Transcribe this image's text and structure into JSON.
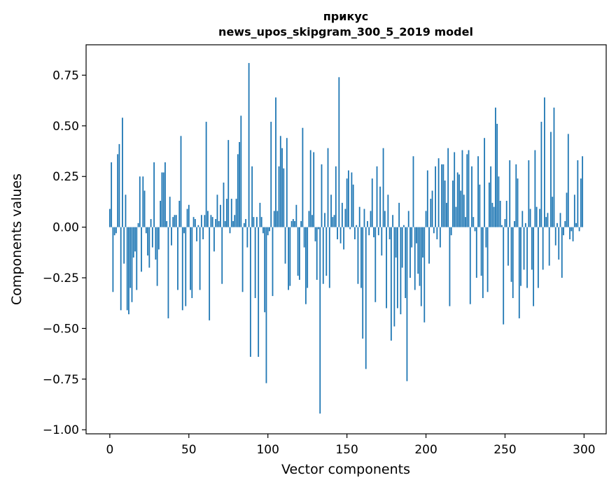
{
  "chart_data": {
    "type": "bar",
    "title": "прикус",
    "subtitle": "news_upos_skipgram_300_5_2019 model",
    "xlabel": "Vector components",
    "ylabel": "Components values",
    "xlim": [
      -15,
      314
    ],
    "ylim": [
      -1.02,
      0.9
    ],
    "grid": false,
    "bar_color": "#1f77b4",
    "xticks": [
      0,
      50,
      100,
      150,
      200,
      250,
      300
    ],
    "yticks": [
      -1.0,
      -0.75,
      -0.5,
      -0.25,
      0.0,
      0.25,
      0.5,
      0.75
    ],
    "ytick_labels": [
      "−1.00",
      "−0.75",
      "−0.50",
      "−0.25",
      "0.00",
      "0.25",
      "0.50",
      "0.75"
    ],
    "values": [
      0.09,
      0.32,
      -0.32,
      -0.04,
      -0.03,
      0.36,
      0.41,
      -0.41,
      0.54,
      -0.18,
      0.16,
      -0.41,
      -0.43,
      -0.3,
      -0.37,
      -0.15,
      -0.12,
      -0.31,
      0.02,
      0.25,
      -0.22,
      0.25,
      0.18,
      -0.03,
      -0.14,
      -0.2,
      0.04,
      -0.1,
      0.32,
      -0.16,
      -0.29,
      -0.11,
      0.13,
      0.27,
      0.27,
      0.32,
      0.03,
      -0.45,
      0.15,
      -0.09,
      0.05,
      0.06,
      0.06,
      -0.31,
      0.13,
      0.45,
      -0.41,
      -0.03,
      -0.39,
      0.09,
      0.11,
      -0.31,
      -0.35,
      0.05,
      0.04,
      -0.07,
      0.01,
      -0.31,
      0.06,
      -0.06,
      0.06,
      0.52,
      0.08,
      -0.46,
      0.06,
      0.05,
      -0.12,
      0.04,
      0.16,
      0.03,
      0.11,
      -0.28,
      0.22,
      0.03,
      0.14,
      0.43,
      -0.03,
      0.14,
      0.03,
      0.06,
      0.14,
      0.36,
      0.42,
      0.55,
      -0.32,
      0.02,
      0.04,
      -0.1,
      0.81,
      -0.64,
      0.3,
      0.05,
      -0.35,
      0.05,
      -0.64,
      0.12,
      0.05,
      -0.03,
      -0.42,
      -0.77,
      -0.04,
      -0.02,
      0.52,
      -0.34,
      0.08,
      0.64,
      0.08,
      0.3,
      0.45,
      0.39,
      0.29,
      -0.18,
      0.44,
      -0.31,
      -0.29,
      0.03,
      0.04,
      0.03,
      0.11,
      -0.24,
      -0.26,
      0.03,
      0.49,
      -0.1,
      -0.38,
      -0.3,
      0.08,
      0.38,
      0.06,
      0.37,
      -0.07,
      -0.26,
      -0.01,
      -0.92,
      0.31,
      -0.28,
      0.07,
      -0.24,
      0.39,
      -0.3,
      0.16,
      0.05,
      0.06,
      0.3,
      -0.06,
      0.74,
      -0.08,
      0.12,
      -0.11,
      0.09,
      0.24,
      0.28,
      -0.01,
      0.27,
      0.21,
      -0.06,
      0.01,
      -0.28,
      0.1,
      -0.3,
      -0.55,
      0.09,
      -0.7,
      0.03,
      -0.04,
      0.08,
      0.24,
      -0.05,
      -0.37,
      0.3,
      -0.04,
      0.2,
      -0.14,
      0.39,
      0.08,
      -0.4,
      0.16,
      -0.06,
      -0.56,
      0.06,
      -0.49,
      -0.15,
      -0.4,
      0.12,
      -0.43,
      -0.2,
      0.01,
      -0.35,
      -0.76,
      0.08,
      -0.25,
      -0.1,
      0.35,
      -0.31,
      -0.08,
      -0.23,
      -0.29,
      -0.39,
      -0.15,
      -0.47,
      0.08,
      0.28,
      -0.18,
      0.14,
      0.18,
      -0.03,
      0.3,
      -0.06,
      0.34,
      -0.1,
      0.31,
      0.31,
      0.23,
      0.12,
      0.39,
      -0.39,
      -0.04,
      0.23,
      0.37,
      0.1,
      0.27,
      0.26,
      0.18,
      0.38,
      0.16,
      0.05,
      0.36,
      0.38,
      -0.38,
      0.3,
      0.05,
      -0.02,
      -0.25,
      0.35,
      0.21,
      -0.24,
      -0.35,
      0.44,
      -0.1,
      -0.32,
      0.22,
      0.3,
      0.12,
      0.1,
      0.59,
      0.51,
      0.25,
      0.13,
      0.01,
      -0.48,
      0.04,
      0.13,
      -0.19,
      0.33,
      -0.27,
      -0.35,
      0.03,
      0.31,
      0.24,
      -0.45,
      -0.29,
      0.08,
      -0.21,
      0.02,
      -0.3,
      0.33,
      0.09,
      -0.21,
      -0.39,
      0.38,
      0.1,
      -0.3,
      0.09,
      0.52,
      -0.21,
      0.64,
      0.05,
      0.07,
      -0.19,
      0.47,
      0.15,
      0.59,
      -0.09,
      0.02,
      -0.16,
      0.07,
      -0.25,
      -0.04,
      0.03,
      0.17,
      0.46,
      -0.06,
      -0.02,
      -0.07,
      0.16,
      0.02,
      0.33,
      -0.02,
      0.24,
      0.35
    ]
  }
}
